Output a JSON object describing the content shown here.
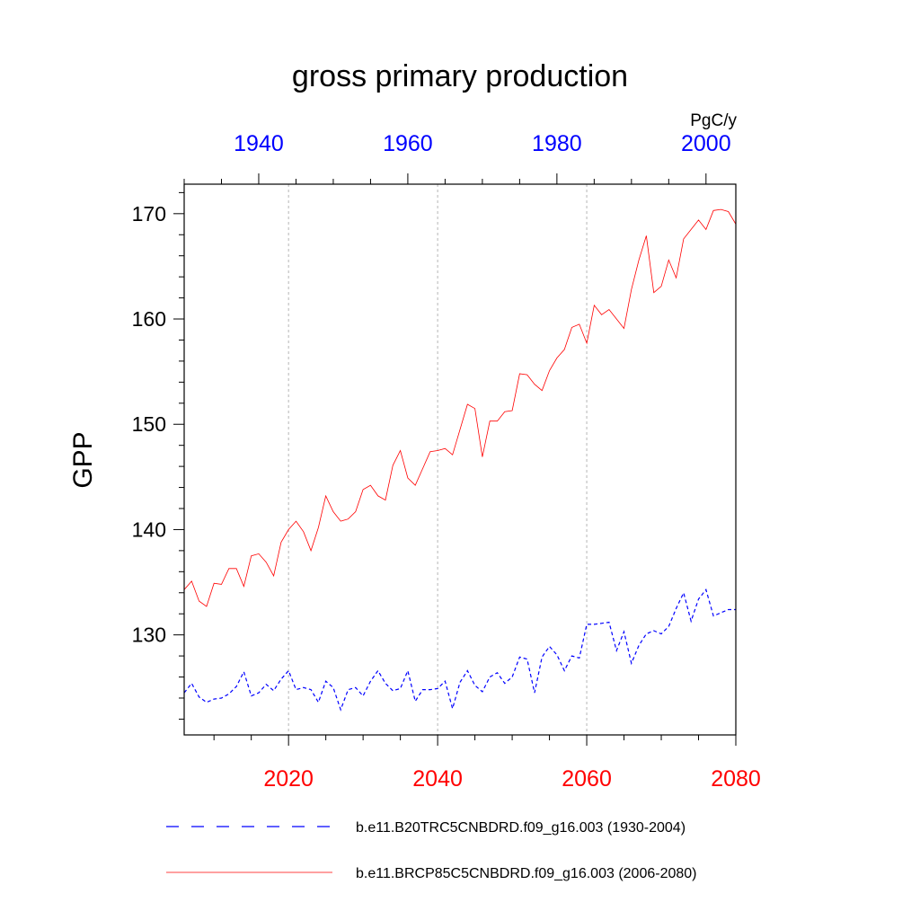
{
  "chart_data": {
    "type": "line",
    "title": "gross primary production",
    "units": "PgC/y",
    "ylabel": "GPP",
    "ylim": [
      120.5,
      172.8
    ],
    "yticks": [
      130,
      140,
      150,
      160,
      170
    ],
    "bottom_axis": {
      "range": [
        2006,
        2080
      ],
      "ticks": [
        2020,
        2040,
        2060,
        2080
      ],
      "color": "#ff0000"
    },
    "top_axis": {
      "range": [
        1930,
        2004
      ],
      "ticks": [
        1940,
        1960,
        1980,
        2000
      ],
      "color": "#0000ff"
    },
    "vertical_gridlines": [
      2020,
      2040,
      2060
    ],
    "series": [
      {
        "name": "b.e11.B20TRC5CNBDRD.f09_g16.003 (1930-2004)",
        "color": "#0000ff",
        "dash": true,
        "x": [
          1930,
          1931,
          1932,
          1933,
          1934,
          1935,
          1936,
          1937,
          1938,
          1939,
          1940,
          1941,
          1942,
          1943,
          1944,
          1945,
          1946,
          1947,
          1948,
          1949,
          1950,
          1951,
          1952,
          1953,
          1954,
          1955,
          1956,
          1957,
          1958,
          1959,
          1960,
          1961,
          1962,
          1963,
          1964,
          1965,
          1966,
          1967,
          1968,
          1969,
          1970,
          1971,
          1972,
          1973,
          1974,
          1975,
          1976,
          1977,
          1978,
          1979,
          1980,
          1981,
          1982,
          1983,
          1984,
          1985,
          1986,
          1987,
          1988,
          1989,
          1990,
          1991,
          1992,
          1993,
          1994,
          1995,
          1996,
          1997,
          1998,
          1999,
          2000,
          2001,
          2002,
          2003,
          2004
        ],
        "values": [
          124.5,
          125.4,
          124.1,
          123.6,
          123.9,
          124.0,
          124.4,
          125.1,
          126.5,
          124.2,
          124.5,
          125.3,
          124.7,
          125.8,
          126.6,
          124.8,
          125.0,
          124.8,
          123.6,
          125.6,
          125.0,
          122.9,
          124.8,
          125.0,
          124.2,
          125.6,
          126.6,
          125.4,
          124.7,
          124.9,
          126.6,
          123.7,
          124.8,
          124.8,
          124.9,
          125.6,
          123.0,
          125.5,
          126.6,
          125.2,
          124.6,
          126.0,
          126.4,
          125.4,
          126.0,
          127.9,
          127.7,
          124.5,
          127.9,
          128.9,
          128.1,
          126.6,
          128.0,
          127.8,
          131.0,
          131.0,
          131.1,
          131.2,
          128.5,
          130.3,
          127.3,
          129.0,
          130.1,
          130.4,
          130.1,
          130.8,
          132.5,
          134.0,
          131.3,
          133.4,
          134.3,
          131.8,
          132.1,
          132.4,
          132.4
        ]
      },
      {
        "name": "b.e11.BRCP85C5CNBDRD.f09_g16.003 (2006-2080)",
        "color": "#ff0000",
        "dash": false,
        "x": [
          2006,
          2007,
          2008,
          2009,
          2010,
          2011,
          2012,
          2013,
          2014,
          2015,
          2016,
          2017,
          2018,
          2019,
          2020,
          2021,
          2022,
          2023,
          2024,
          2025,
          2026,
          2027,
          2028,
          2029,
          2030,
          2031,
          2032,
          2033,
          2034,
          2035,
          2036,
          2037,
          2038,
          2039,
          2040,
          2041,
          2042,
          2043,
          2044,
          2045,
          2046,
          2047,
          2048,
          2049,
          2050,
          2051,
          2052,
          2053,
          2054,
          2055,
          2056,
          2057,
          2058,
          2059,
          2060,
          2061,
          2062,
          2063,
          2064,
          2065,
          2066,
          2067,
          2068,
          2069,
          2070,
          2071,
          2072,
          2073,
          2074,
          2075,
          2076,
          2077,
          2078,
          2079,
          2080
        ],
        "values": [
          134.3,
          135.1,
          133.2,
          132.7,
          134.9,
          134.8,
          136.3,
          136.3,
          134.6,
          137.5,
          137.7,
          136.9,
          135.6,
          138.8,
          140.0,
          140.8,
          139.8,
          138.0,
          140.2,
          143.2,
          141.7,
          140.8,
          141.0,
          141.7,
          143.8,
          144.2,
          143.2,
          142.8,
          146.1,
          147.5,
          144.9,
          144.2,
          145.8,
          147.4,
          147.5,
          147.7,
          147.1,
          149.5,
          151.9,
          151.5,
          146.9,
          150.3,
          150.3,
          151.2,
          151.3,
          154.8,
          154.7,
          153.8,
          153.2,
          155.1,
          156.3,
          157.1,
          159.2,
          159.5,
          157.7,
          161.3,
          160.4,
          160.9,
          160.0,
          159.1,
          162.8,
          165.6,
          167.9,
          162.5,
          163.1,
          165.6,
          163.9,
          167.6,
          168.5,
          169.4,
          168.5,
          170.3,
          170.4,
          170.2,
          169.0
        ]
      }
    ],
    "legend": {
      "placement": "bottom"
    }
  }
}
